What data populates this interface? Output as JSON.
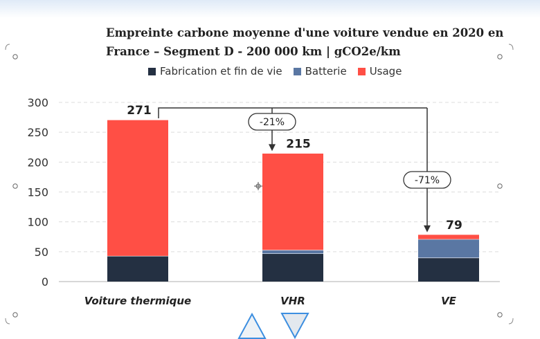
{
  "chart_data": {
    "type": "bar",
    "stacked": true,
    "title": "Empreinte carbone moyenne d'une voiture vendue en 2020 en France – Segment D - 200 000 km | gCO2e/km",
    "title_lines": [
      "Empreinte carbone moyenne d'une voiture vendue en 2020 en",
      "France – Segment D - 200 000 km | gCO2e/km"
    ],
    "categories": [
      "Voiture thermique",
      "VHR",
      "VE"
    ],
    "series": [
      {
        "name": "Fabrication et fin de vie",
        "values": [
          43,
          47,
          40
        ],
        "color": "#243042"
      },
      {
        "name": "Batterie",
        "values": [
          0,
          6,
          31
        ],
        "color": "#5a77a3"
      },
      {
        "name": "Usage",
        "values": [
          228,
          162,
          8
        ],
        "color": "#ff4f45"
      }
    ],
    "totals": [
      271,
      215,
      79
    ],
    "reductions": [
      {
        "label": "-21%",
        "target": "VHR"
      },
      {
        "label": "-71%",
        "target": "VE"
      }
    ],
    "yticks": [
      0,
      50,
      100,
      150,
      200,
      250,
      300
    ],
    "ylim": [
      0,
      300
    ],
    "grid": true,
    "legend": "top",
    "xlabel": "",
    "ylabel": ""
  }
}
